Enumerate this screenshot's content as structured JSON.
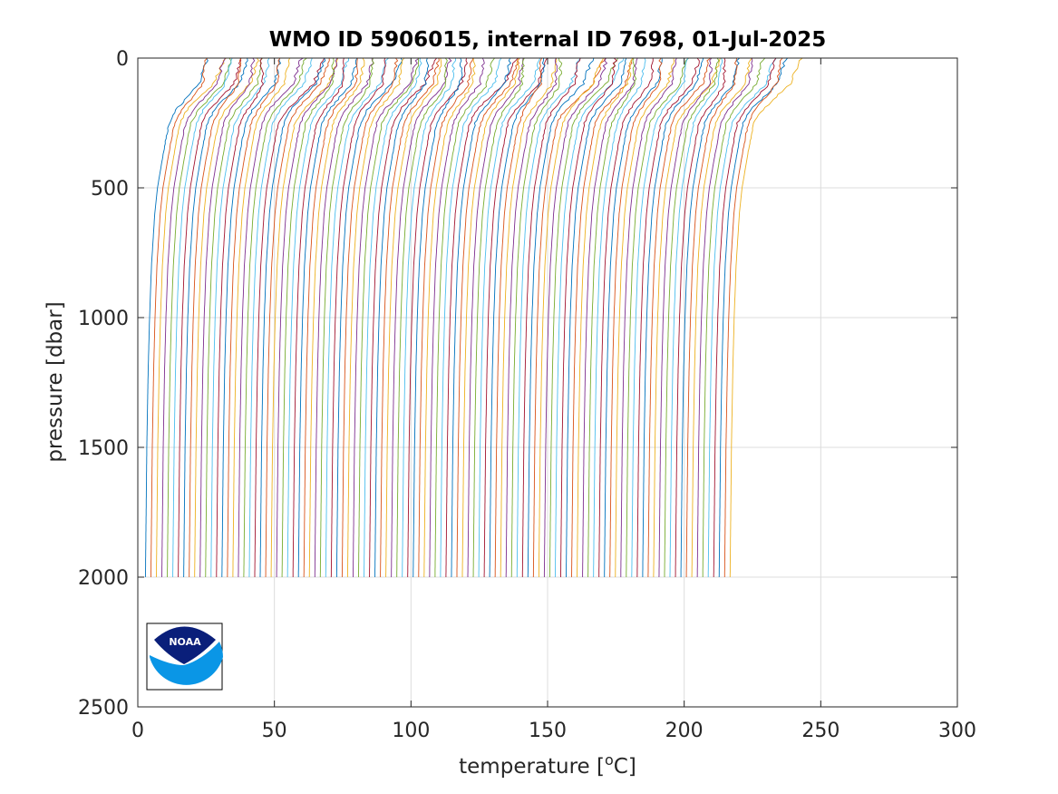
{
  "chart_data": {
    "type": "line",
    "title": "WMO ID 5906015, internal ID 7698, 01-Jul-2025",
    "xlabel": "temperature [",
    "xlabel_sup": "o",
    "xlabel_suffix": "C]",
    "ylabel": "pressure [dbar]",
    "xlim": [
      0,
      300
    ],
    "ylim": [
      0,
      2500
    ],
    "y_reversed": true,
    "grid": true,
    "x_ticks": [
      "0",
      "50",
      "100",
      "150",
      "200",
      "250",
      "300"
    ],
    "y_ticks": [
      "0",
      "500",
      "1000",
      "1500",
      "2000",
      "2500"
    ],
    "profile_count": 108,
    "profile_offset_step": 2,
    "profile_pressure_max": 2000,
    "first_profile": {
      "pressure": [
        0,
        100,
        200,
        250,
        300,
        400,
        500,
        600,
        800,
        1000,
        1200,
        1500,
        1800,
        2000
      ],
      "temperature": [
        24.0,
        22.0,
        14.0,
        11.5,
        10.5,
        8.8,
        7.2,
        6.2,
        5.0,
        4.3,
        3.8,
        3.3,
        3.0,
        2.8
      ]
    },
    "series_colors": [
      "#0072BD",
      "#D95319",
      "#EDB120",
      "#7E2F8E",
      "#77AC30",
      "#4DBEEE",
      "#A2142F"
    ]
  },
  "logo": {
    "name": "NOAA",
    "text": "NOAA",
    "colors": {
      "dark": "#0A1F7A",
      "light": "#0A96E6"
    }
  }
}
